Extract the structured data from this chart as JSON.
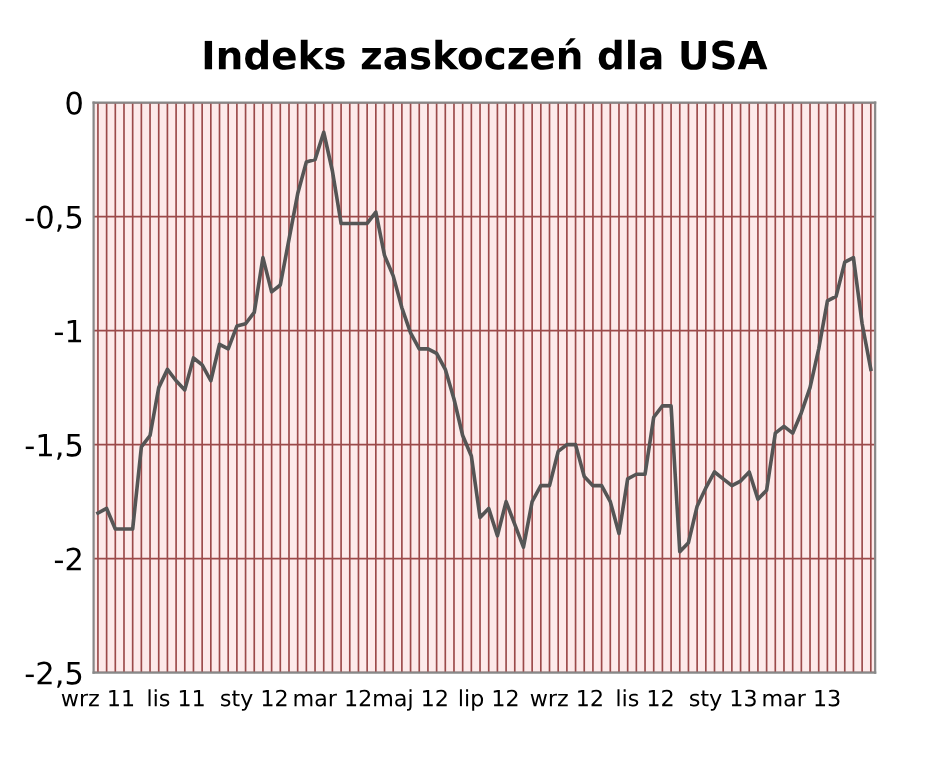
{
  "chart_data": {
    "type": "line",
    "title": "Indeks zaskoczeń dla USA",
    "categories": [
      "wrz 11",
      null,
      null,
      null,
      null,
      null,
      null,
      null,
      null,
      "lis 11",
      null,
      null,
      null,
      null,
      null,
      null,
      null,
      null,
      "sty 12",
      null,
      null,
      null,
      null,
      null,
      null,
      null,
      null,
      "mar 12",
      null,
      null,
      null,
      null,
      null,
      null,
      null,
      null,
      "maj 12",
      null,
      null,
      null,
      null,
      null,
      null,
      null,
      null,
      "lip 12",
      null,
      null,
      null,
      null,
      null,
      null,
      null,
      null,
      "wrz 12",
      null,
      null,
      null,
      null,
      null,
      null,
      null,
      null,
      "lis 12",
      null,
      null,
      null,
      null,
      null,
      null,
      null,
      null,
      "sty 13",
      null,
      null,
      null,
      null,
      null,
      null,
      null,
      null,
      "mar 13",
      null,
      null,
      null,
      null,
      null,
      null,
      null,
      null
    ],
    "series": [
      {
        "color": "#555555",
        "values": [
          -1.8,
          -1.78,
          -1.87,
          -1.87,
          -1.87,
          -1.51,
          -1.46,
          -1.25,
          -1.17,
          -1.22,
          -1.26,
          -1.12,
          -1.15,
          -1.22,
          -1.06,
          -1.08,
          -0.98,
          -0.97,
          -0.92,
          -0.68,
          -0.83,
          -0.8,
          -0.6,
          -0.4,
          -0.26,
          -0.25,
          -0.13,
          -0.3,
          -0.53,
          -0.53,
          -0.53,
          -0.53,
          -0.48,
          -0.67,
          -0.76,
          -0.9,
          -1.01,
          -1.08,
          -1.08,
          -1.1,
          -1.17,
          -1.3,
          -1.46,
          -1.55,
          -1.82,
          -1.78,
          -1.9,
          -1.75,
          -1.85,
          -1.95,
          -1.75,
          -1.68,
          -1.68,
          -1.53,
          -1.5,
          -1.5,
          -1.64,
          -1.68,
          -1.68,
          -1.75,
          -1.89,
          -1.65,
          -1.63,
          -1.63,
          -1.38,
          -1.33,
          -1.33,
          -1.97,
          -1.93,
          -1.77,
          -1.69,
          -1.62,
          -1.65,
          -1.68,
          -1.66,
          -1.62,
          -1.74,
          -1.7,
          -1.45,
          -1.42,
          -1.45,
          -1.36,
          -1.25,
          -1.08,
          -0.87,
          -0.85,
          -0.7,
          -0.68,
          -0.97,
          -1.17
        ]
      }
    ],
    "ylim": [
      -2.5,
      0
    ],
    "yticks": [
      {
        "value": -2.5,
        "label": "-2,5"
      },
      {
        "value": -2,
        "label": "-2"
      },
      {
        "value": -1.5,
        "label": "-1,5"
      },
      {
        "value": -1,
        "label": "-1"
      },
      {
        "value": -0.5,
        "label": "-0,5"
      },
      0
    ],
    "grid": true,
    "marker": "none",
    "line_style": "solid"
  }
}
